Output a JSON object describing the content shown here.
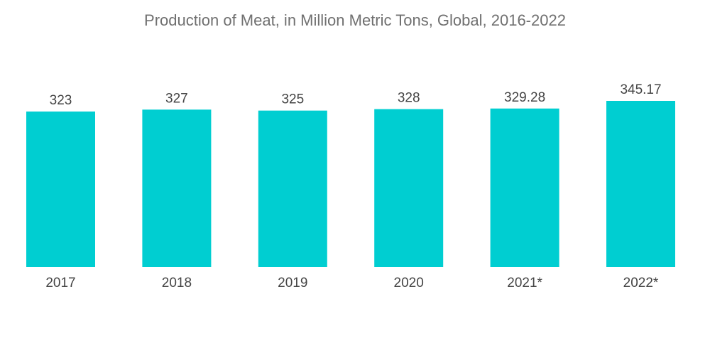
{
  "chart_data": {
    "type": "bar",
    "title": "Production of Meat, in Million Metric Tons, Global, 2016-2022",
    "categories": [
      "2017",
      "2018",
      "2019",
      "2020",
      "2021*",
      "2022*"
    ],
    "values": [
      323,
      327,
      325,
      328,
      329.28,
      345.17
    ],
    "value_labels": [
      "323",
      "327",
      "325",
      "328",
      "329.28",
      "345.17"
    ],
    "xlabel": "",
    "ylabel": "",
    "ylim": [
      0,
      345.17
    ],
    "grid": false,
    "bar_color": "#00CED1"
  }
}
